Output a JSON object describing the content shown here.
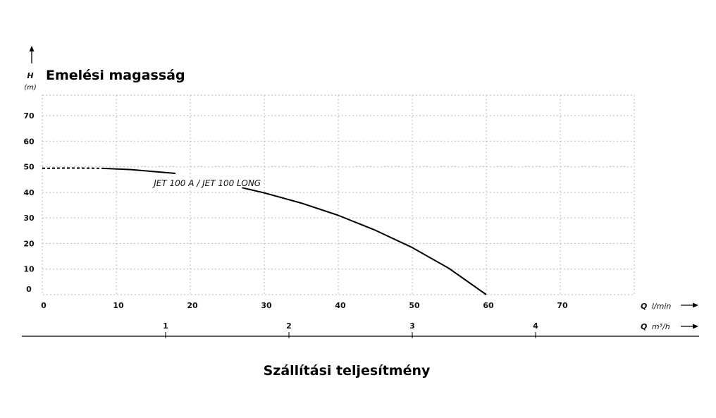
{
  "chart_data": {
    "type": "line",
    "title": "Emelési magasság",
    "xlabel": "Szállítási teljesítmény",
    "y_axis": {
      "symbol": "H",
      "unit": "(m)",
      "ticks": [
        0,
        10,
        20,
        30,
        40,
        50,
        60,
        70
      ],
      "ylim": [
        0,
        78
      ]
    },
    "x_axis_primary": {
      "symbol": "Q",
      "unit": "l/min",
      "ticks": [
        0,
        10,
        20,
        30,
        40,
        50,
        60,
        70
      ],
      "xlim": [
        0,
        80
      ]
    },
    "x_axis_secondary": {
      "symbol": "Q",
      "unit": "m³/h",
      "ticks": [
        1,
        2,
        3,
        4
      ]
    },
    "grid": true,
    "series": [
      {
        "name": "JET 100 A / JET 100 LONG",
        "color": "#000000",
        "dashed_segment": {
          "x": [
            0,
            4,
            8
          ],
          "y": [
            49.4,
            49.5,
            49.4
          ]
        },
        "x": [
          8,
          12,
          18,
          27,
          30,
          35,
          40,
          45,
          50,
          55,
          60
        ],
        "y": [
          49.4,
          48.9,
          47.4,
          41.8,
          39.8,
          35.8,
          31.0,
          25.2,
          18.4,
          10.2,
          0
        ]
      }
    ]
  }
}
